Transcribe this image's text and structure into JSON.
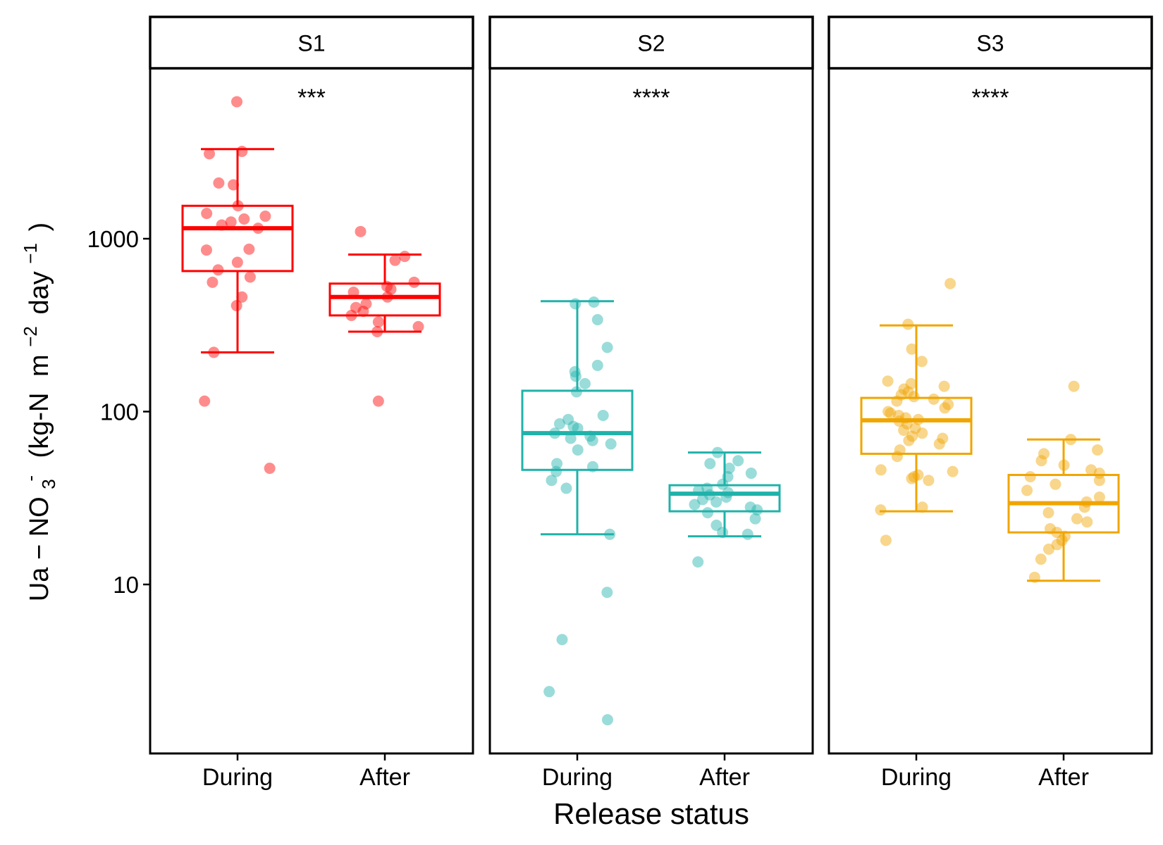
{
  "chart_data": {
    "type": "box",
    "title": "",
    "xlabel": "Release status",
    "ylabel": {
      "prefix": "Ua",
      "dash": "−",
      "species": "NO",
      "species_sub": "3",
      "species_sup": "-",
      "units_open": "(kg-N",
      "m": "m",
      "m_sup": "−2",
      "day": "day",
      "day_sup": "−1",
      "units_close": ")"
    },
    "y_scale": "log10",
    "ylim": [
      1.2,
      9000
    ],
    "yticks": [
      10,
      100,
      1000
    ],
    "ytick_labels": [
      "10",
      "100",
      "1000"
    ],
    "categories": [
      "During",
      "After"
    ],
    "colors": {
      "S1": "#ff0000",
      "S2": "#20b2aa",
      "S3": "#f0a500"
    },
    "panels": [
      {
        "name": "S1",
        "significance": "***",
        "boxes": [
          {
            "category": "During",
            "whisker_low": 220,
            "q1": 650,
            "median": 1150,
            "q3": 1550,
            "whisker_high": 3300,
            "points": [
              6200,
              3200,
              3100,
              2100,
              2050,
              1550,
              1400,
              1350,
              1300,
              1250,
              1200,
              1150,
              870,
              860,
              730,
              660,
              600,
              560,
              460,
              410,
              220,
              115,
              47
            ]
          },
          {
            "category": "After",
            "whisker_low": 290,
            "q1": 360,
            "median": 460,
            "q3": 550,
            "whisker_high": 810,
            "points": [
              1100,
              790,
              750,
              560,
              530,
              510,
              490,
              460,
              420,
              400,
              380,
              360,
              330,
              310,
              290,
              115
            ]
          }
        ]
      },
      {
        "name": "S2",
        "significance": "****",
        "boxes": [
          {
            "category": "During",
            "whisker_low": 19.5,
            "q1": 46,
            "median": 75,
            "q3": 132,
            "whisker_high": 435,
            "points": [
              430,
              420,
              340,
              235,
              185,
              170,
              160,
              145,
              130,
              95,
              90,
              85,
              82,
              80,
              75,
              72,
              70,
              68,
              65,
              60,
              50,
              48,
              45,
              40,
              36,
              19.5,
              9,
              4.8,
              2.4,
              1.65
            ]
          },
          {
            "category": "After",
            "whisker_low": 19,
            "q1": 26.5,
            "median": 33.5,
            "q3": 37.5,
            "whisker_high": 58,
            "points": [
              58,
              52,
              50,
              47,
              44,
              42,
              38,
              36,
              35,
              34,
              33,
              32,
              31,
              30,
              29,
              28,
              27,
              26,
              24,
              22,
              20,
              19.5,
              13.5
            ]
          }
        ]
      },
      {
        "name": "S3",
        "significance": "****",
        "boxes": [
          {
            "category": "During",
            "whisker_low": 26.5,
            "q1": 57,
            "median": 89,
            "q3": 120,
            "whisker_high": 315,
            "points": [
              550,
              320,
              230,
              195,
              150,
              145,
              140,
              135,
              130,
              125,
              122,
              118,
              115,
              110,
              105,
              100,
              98,
              95,
              92,
              90,
              88,
              85,
              80,
              78,
              75,
              72,
              70,
              68,
              65,
              60,
              55,
              46,
              45,
              43,
              42,
              41,
              40,
              28,
              27,
              18
            ]
          },
          {
            "category": "After",
            "whisker_low": 10.5,
            "q1": 20,
            "median": 29.5,
            "q3": 43,
            "whisker_high": 69,
            "points": [
              140,
              69,
              60,
              57,
              52,
              49,
              46,
              44,
              42,
              40,
              38,
              35,
              32,
              30,
              28,
              26,
              24,
              23,
              21,
              20,
              19,
              18,
              17,
              16,
              14,
              11
            ]
          }
        ]
      }
    ]
  }
}
